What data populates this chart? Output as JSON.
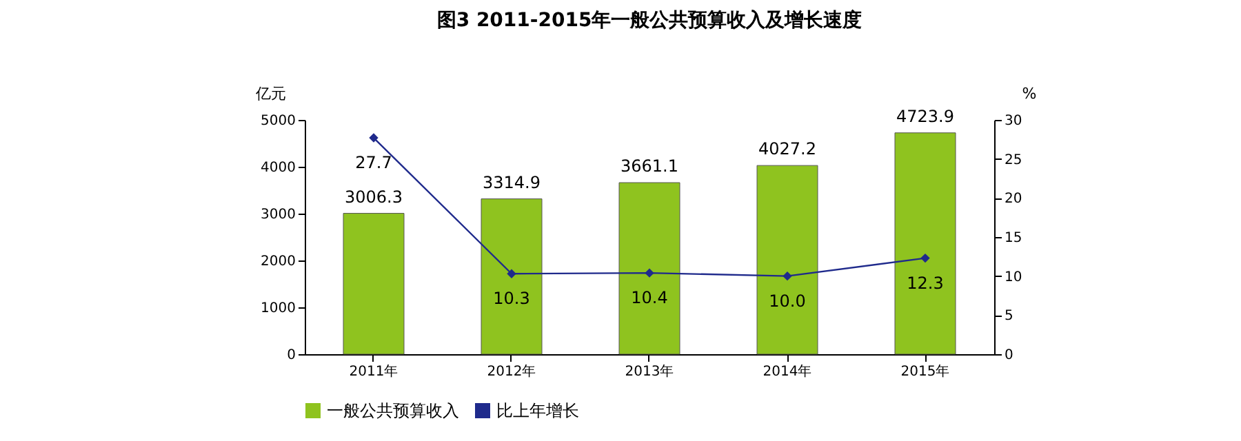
{
  "chart_data": {
    "type": "bar",
    "title": "图3    2011-2015年一般公共预算收入及增长速度",
    "categories": [
      "2011年",
      "2012年",
      "2013年",
      "2014年",
      "2015年"
    ],
    "series": [
      {
        "name": "一般公共预算收入",
        "color": "#8fc31f",
        "values": [
          3006.3,
          3314.9,
          3661.1,
          4027.2,
          4723.9
        ]
      },
      {
        "name": "比上年增长",
        "type": "line",
        "axis": "y2",
        "color": "#1f2a8c",
        "values": [
          27.7,
          10.3,
          10.4,
          10.0,
          12.3
        ],
        "value_labels": [
          "27.7",
          "10.3",
          "10.4",
          "10.0",
          "12.3"
        ],
        "marker": "diamond"
      }
    ],
    "ylabel": "亿元",
    "y2label": "%",
    "ylim": [
      0,
      5000
    ],
    "yticks": [
      0,
      1000,
      2000,
      3000,
      4000,
      5000
    ],
    "y2lim": [
      0,
      30
    ],
    "y2ticks": [
      0,
      5,
      10,
      15,
      20,
      25,
      30
    ],
    "data_labels": true,
    "legend": "bottom",
    "grid": false
  }
}
